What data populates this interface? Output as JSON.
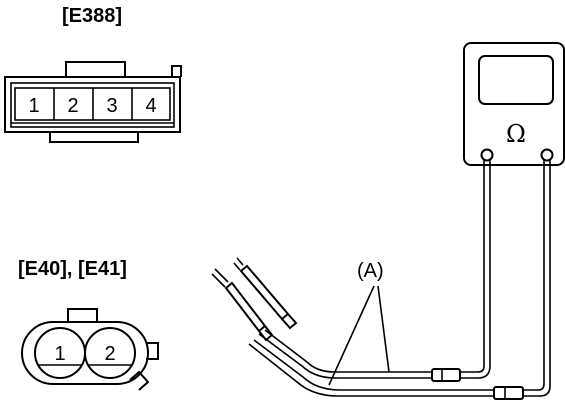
{
  "connector_4pin": {
    "label": "[E388]",
    "pins": [
      "1",
      "2",
      "3",
      "4"
    ]
  },
  "connector_2pin": {
    "label": "[E40], [E41]",
    "pins": [
      "1",
      "2"
    ]
  },
  "meter": {
    "symbol": "Ω"
  },
  "callout": {
    "label": "(A)"
  }
}
